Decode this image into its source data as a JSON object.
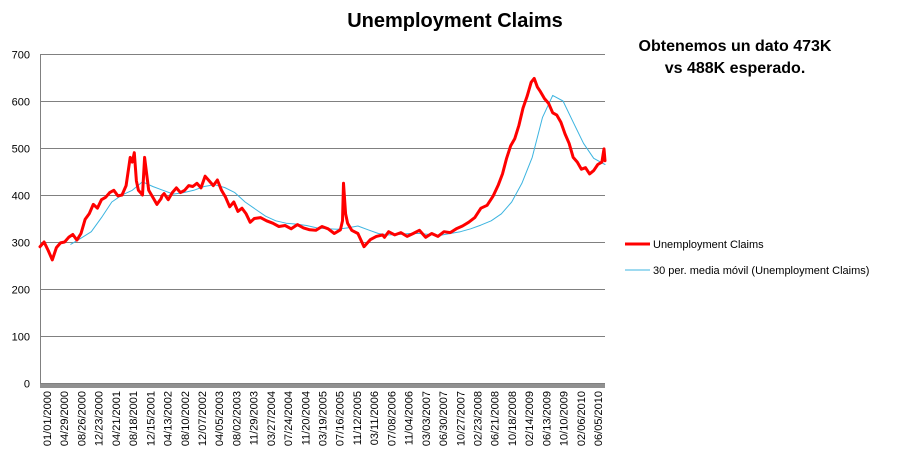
{
  "chart_data": {
    "type": "line",
    "title": "Unemployment Claims",
    "annotation": [
      "Obtenemos un dato 473K",
      "vs 488K esperado."
    ],
    "ylim": [
      0,
      700
    ],
    "yticks": [
      0,
      100,
      200,
      300,
      400,
      500,
      600,
      700
    ],
    "xlim": [
      "2000-01-01",
      "2010-07-24"
    ],
    "x_tick_labels": [
      "01/01/2000",
      "04/29/2000",
      "08/26/2000",
      "12/23/2000",
      "04/21/2001",
      "08/18/2001",
      "12/15/2001",
      "04/13/2002",
      "08/10/2002",
      "12/07/2002",
      "04/05/2003",
      "08/02/2003",
      "11/29/2003",
      "03/27/2004",
      "07/24/2004",
      "11/20/2004",
      "03/19/2005",
      "07/16/2005",
      "11/12/2005",
      "03/11/2006",
      "07/08/2006",
      "11/04/2006",
      "03/03/2007",
      "06/30/2007",
      "10/27/2007",
      "02/23/2008",
      "06/21/2008",
      "10/18/2008",
      "02/14/2009",
      "06/13/2009",
      "10/10/2009",
      "02/06/2010",
      "06/05/2010"
    ],
    "grid": true,
    "legend_position": "right",
    "colors": {
      "claims": "#ff0000",
      "ma": "#3cb4e0",
      "grid": "#808080",
      "axis": "#808080"
    },
    "series": [
      {
        "name": "Unemployment Claims",
        "x": [
          "2000-01-01",
          "2000-01-29",
          "2000-02-26",
          "2000-03-25",
          "2000-04-22",
          "2000-05-20",
          "2000-06-17",
          "2000-07-15",
          "2000-08-12",
          "2000-09-09",
          "2000-10-07",
          "2000-11-04",
          "2000-12-02",
          "2000-12-30",
          "2001-01-27",
          "2001-02-24",
          "2001-03-24",
          "2001-04-21",
          "2001-05-19",
          "2001-06-16",
          "2001-07-14",
          "2001-08-11",
          "2001-09-08",
          "2001-09-22",
          "2001-10-06",
          "2001-10-20",
          "2001-11-03",
          "2001-11-17",
          "2001-12-01",
          "2001-12-15",
          "2002-01-12",
          "2002-02-09",
          "2002-03-09",
          "2002-04-06",
          "2002-04-13",
          "2002-04-27",
          "2002-05-25",
          "2002-06-22",
          "2002-07-20",
          "2002-08-17",
          "2002-09-14",
          "2002-10-12",
          "2002-11-09",
          "2002-12-07",
          "2003-01-04",
          "2003-02-01",
          "2003-03-01",
          "2003-03-29",
          "2003-04-26",
          "2003-05-24",
          "2003-06-21",
          "2003-07-19",
          "2003-08-16",
          "2003-09-13",
          "2003-10-11",
          "2003-11-08",
          "2003-12-06",
          "2004-01-03",
          "2004-02-14",
          "2004-03-27",
          "2004-05-08",
          "2004-06-19",
          "2004-07-31",
          "2004-09-11",
          "2004-10-23",
          "2004-12-04",
          "2005-01-15",
          "2005-02-26",
          "2005-04-09",
          "2005-05-21",
          "2005-07-02",
          "2005-08-13",
          "2005-08-27",
          "2005-09-03",
          "2005-09-17",
          "2005-10-01",
          "2005-10-29",
          "2005-12-10",
          "2006-01-21",
          "2006-03-04",
          "2006-04-15",
          "2006-05-27",
          "2006-06-10",
          "2006-07-08",
          "2006-08-19",
          "2006-09-30",
          "2006-11-11",
          "2006-12-23",
          "2007-02-03",
          "2007-03-17",
          "2007-04-28",
          "2007-06-09",
          "2007-07-21",
          "2007-09-01",
          "2007-10-13",
          "2007-11-24",
          "2008-01-05",
          "2008-02-16",
          "2008-03-29",
          "2008-05-10",
          "2008-06-21",
          "2008-07-26",
          "2008-08-23",
          "2008-09-20",
          "2008-10-18",
          "2008-11-15",
          "2008-12-13",
          "2009-01-10",
          "2009-02-07",
          "2009-03-07",
          "2009-03-28",
          "2009-04-18",
          "2009-05-09",
          "2009-06-06",
          "2009-07-04",
          "2009-08-01",
          "2009-08-29",
          "2009-09-26",
          "2009-10-24",
          "2009-11-21",
          "2009-12-19",
          "2010-01-16",
          "2010-02-13",
          "2010-03-13",
          "2010-04-10",
          "2010-05-08",
          "2010-06-05",
          "2010-07-03",
          "2010-07-17",
          "2010-07-24"
        ],
        "y": [
          290,
          300,
          282,
          262,
          288,
          298,
          300,
          310,
          316,
          304,
          318,
          348,
          360,
          380,
          372,
          390,
          395,
          405,
          410,
          398,
          400,
          420,
          480,
          470,
          490,
          430,
          410,
          405,
          400,
          480,
          410,
          395,
          380,
          392,
          398,
          403,
          390,
          405,
          415,
          405,
          410,
          420,
          418,
          425,
          415,
          440,
          430,
          420,
          432,
          410,
          395,
          375,
          385,
          365,
          372,
          360,
          342,
          350,
          352,
          345,
          340,
          333,
          335,
          328,
          337,
          330,
          326,
          325,
          333,
          328,
          318,
          326,
          345,
          425,
          360,
          340,
          325,
          318,
          290,
          305,
          312,
          315,
          310,
          322,
          315,
          320,
          312,
          318,
          325,
          310,
          318,
          312,
          322,
          320,
          328,
          334,
          342,
          352,
          372,
          378,
          398,
          422,
          445,
          478,
          505,
          520,
          548,
          585,
          610,
          640,
          648,
          630,
          620,
          605,
          595,
          575,
          570,
          555,
          530,
          510,
          480,
          470,
          455,
          458,
          445,
          452,
          465,
          470,
          498,
          473
        ]
      },
      {
        "name": "30 per. media móvil (Unemployment Claims)",
        "x": [
          "2000-07-29",
          "2000-10-07",
          "2000-12-16",
          "2001-02-24",
          "2001-05-05",
          "2001-07-14",
          "2001-09-22",
          "2001-12-01",
          "2002-02-09",
          "2002-04-20",
          "2002-06-29",
          "2002-09-07",
          "2002-11-16",
          "2003-01-25",
          "2003-04-05",
          "2003-06-14",
          "2003-08-23",
          "2003-11-01",
          "2004-01-10",
          "2004-03-20",
          "2004-05-29",
          "2004-08-07",
          "2004-10-16",
          "2004-12-25",
          "2005-03-05",
          "2005-05-14",
          "2005-07-23",
          "2005-10-01",
          "2005-12-10",
          "2006-02-18",
          "2006-04-29",
          "2006-07-08",
          "2006-09-16",
          "2006-11-25",
          "2007-02-03",
          "2007-04-14",
          "2007-06-23",
          "2007-09-01",
          "2007-11-10",
          "2008-01-19",
          "2008-03-29",
          "2008-06-07",
          "2008-08-16",
          "2008-10-25",
          "2009-01-03",
          "2009-03-14",
          "2009-05-23",
          "2009-08-01",
          "2009-10-10",
          "2009-12-19",
          "2010-02-27",
          "2010-05-08",
          "2010-07-24"
        ],
        "y": [
          295,
          308,
          322,
          352,
          385,
          400,
          410,
          428,
          418,
          410,
          402,
          405,
          410,
          418,
          422,
          416,
          405,
          385,
          370,
          355,
          345,
          340,
          338,
          335,
          330,
          328,
          327,
          330,
          334,
          326,
          318,
          315,
          316,
          318,
          318,
          316,
          314,
          318,
          322,
          328,
          336,
          345,
          360,
          385,
          425,
          480,
          565,
          612,
          600,
          555,
          510,
          478,
          465
        ]
      }
    ]
  }
}
